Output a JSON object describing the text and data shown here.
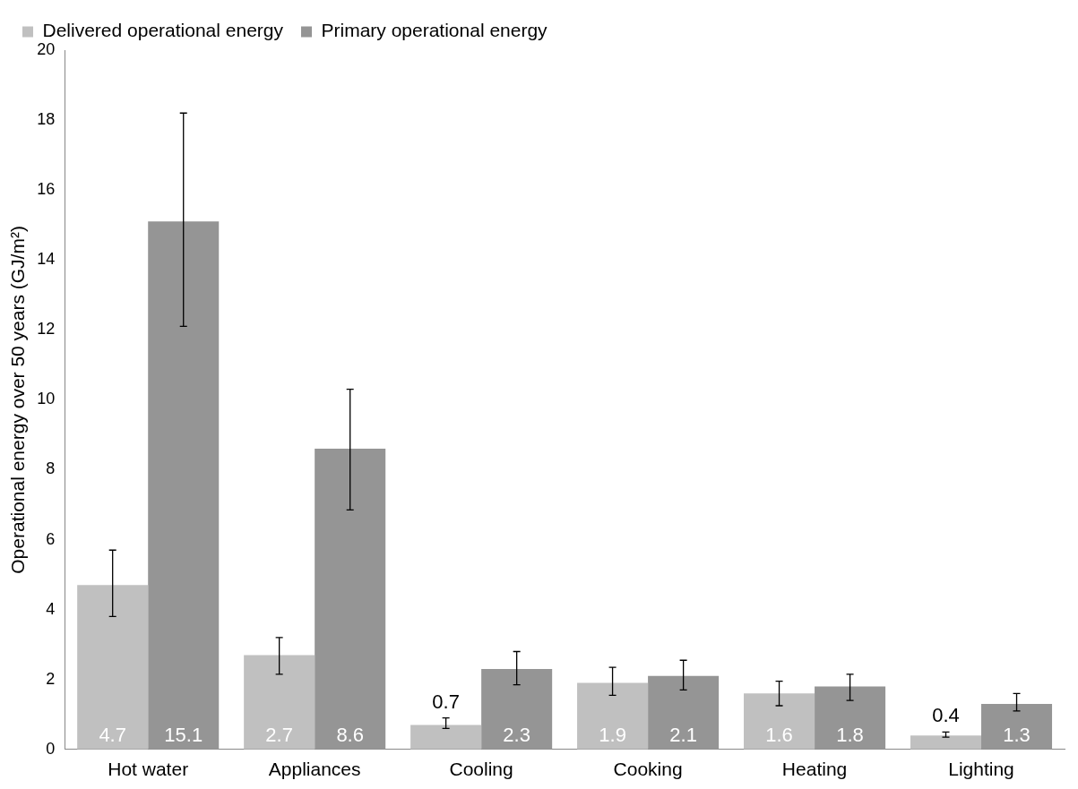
{
  "chart_data": {
    "type": "bar",
    "ylabel": "Operational energy over 50 years (GJ/m²)",
    "categories": [
      "Hot water",
      "Appliances",
      "Cooling",
      "Cooking",
      "Heating",
      "Lighting"
    ],
    "series": [
      {
        "name": "Delivered operational energy",
        "color": "#c0c0c0",
        "values": [
          4.7,
          2.7,
          0.7,
          1.9,
          1.6,
          0.4
        ],
        "errors": [
          [
            3.8,
            5.7
          ],
          [
            2.15,
            3.2
          ],
          [
            0.6,
            0.9
          ],
          [
            1.55,
            2.35
          ],
          [
            1.25,
            1.95
          ],
          [
            0.35,
            0.5
          ]
        ]
      },
      {
        "name": "Primary operational energy",
        "color": "#959595",
        "values": [
          15.1,
          8.6,
          2.3,
          2.1,
          1.8,
          1.3
        ],
        "errors": [
          [
            12.1,
            18.2
          ],
          [
            6.85,
            10.3
          ],
          [
            1.85,
            2.8
          ],
          [
            1.7,
            2.55
          ],
          [
            1.4,
            2.15
          ],
          [
            1.1,
            1.6
          ]
        ]
      }
    ],
    "ylim": [
      0,
      20
    ],
    "yticks": [
      0,
      2,
      4,
      6,
      8,
      10,
      12,
      14,
      16,
      18,
      20
    ],
    "grid": false,
    "legend": "top",
    "data_labels": true
  }
}
